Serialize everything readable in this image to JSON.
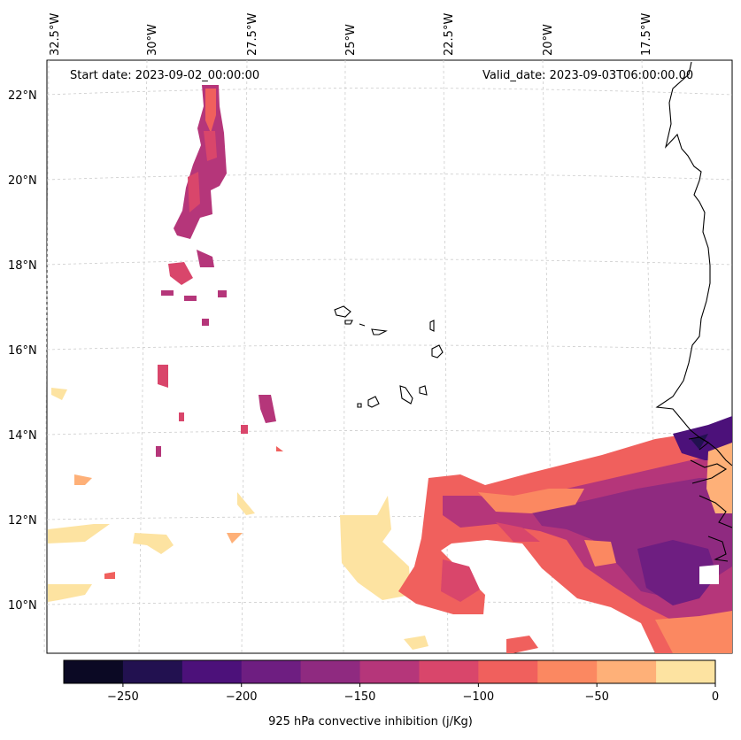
{
  "annotations": {
    "start_date": "Start date: 2023-09-02_00:00:00",
    "valid_date": "Valid_date: 2023-09-03T06:00:00.00"
  },
  "map": {
    "longitude_labels": [
      "32.5°W",
      "30°W",
      "27.5°W",
      "25°W",
      "22.5°W",
      "20°W",
      "17.5°W"
    ],
    "latitude_labels": [
      "22°N",
      "20°N",
      "18°N",
      "16°N",
      "14°N",
      "12°N",
      "10°N"
    ],
    "gridlines": true,
    "field": "925 hPa convective inhibition"
  },
  "colorbar": {
    "title": "925 hPa convective inhibition (j/Kg)",
    "min": -275,
    "max": 0,
    "step": 25,
    "tick_labels": [
      "−250",
      "−200",
      "−150",
      "−100",
      "−50",
      "0"
    ],
    "colors": [
      "#0b0924",
      "#221150",
      "#4c117a",
      "#6e1e81",
      "#8f2a80",
      "#b5367a",
      "#d9466b",
      "#f0605d",
      "#fb8861",
      "#feb078",
      "#fde3a1"
    ]
  }
}
